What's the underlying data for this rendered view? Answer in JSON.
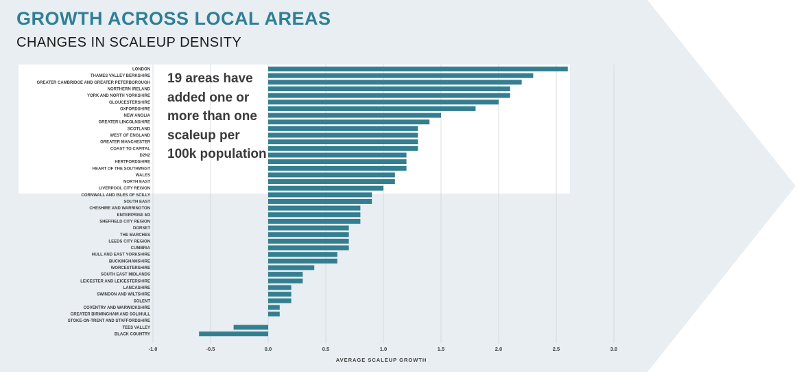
{
  "title": "GROWTH ACROSS LOCAL AREAS",
  "subtitle": "CHANGES IN SCALEUP DENSITY",
  "callout": "19 areas have added one or more than one scaleup per 100k population",
  "colors": {
    "title": "#2f7f96",
    "bar": "#347e91",
    "arrow_bg": "#e8eef1",
    "highlight_box": "#ffffff"
  },
  "chart_data": {
    "type": "bar",
    "orientation": "horizontal",
    "xlabel": "AVERAGE SCALEUP GROWTH",
    "xlim": [
      -1.0,
      3.0
    ],
    "xticks": [
      "-1.0",
      "-0.5",
      "0.0",
      "0.5",
      "1.0",
      "1.5",
      "2.0",
      "2.5",
      "3.0"
    ],
    "grid": "vertical",
    "highlight_count": 19,
    "categories": [
      "LONDON",
      "THAMES VALLEY BERKSHIRE",
      "GREATER CAMBRIDGE AND GREATER PETERBOROUGH",
      "NORTHERN IRELAND",
      "YORK AND NORTH YORKSHIRE",
      "GLOUCESTERSHIRE",
      "OXFORDSHIRE",
      "NEW ANGLIA",
      "GREATER LINCOLNSHIRE",
      "SCOTLAND",
      "WEST OF ENGLAND",
      "GREATER MANCHESTER",
      "COAST TO CAPITAL",
      "D2N2",
      "HERTFORDSHIRE",
      "HEART OF THE SOUTHWEST",
      "WALES",
      "NORTH EAST",
      "LIVERPOOL CITY REGION",
      "CORNWALL AND ISLES OF SCILLY",
      "SOUTH EAST",
      "CHESHIRE AND WARRINGTON",
      "ENTERPRISE M3",
      "SHEFFIELD CITY REGION",
      "DORSET",
      "THE MARCHES",
      "LEEDS CITY REGION",
      "CUMBRIA",
      "HULL AND EAST YORKSHIRE",
      "BUCKINGHAMSHIRE",
      "WORCESTERSHIRE",
      "SOUTH EAST MIDLANDS",
      "LEICESTER AND LEICESTERSHIRE",
      "LANCASHIRE",
      "SWINDON AND WILTSHIRE",
      "SOLENT",
      "COVENTRY AND WARWICKSHIRE",
      "GREATER BIRMINGHAM AND SOLIHULL",
      "STOKE-ON-TRENT AND STAFFORDSHIRE",
      "TEES VALLEY",
      "BLACK COUNTRY"
    ],
    "values": [
      2.6,
      2.3,
      2.2,
      2.1,
      2.1,
      2.0,
      1.8,
      1.5,
      1.4,
      1.3,
      1.3,
      1.3,
      1.3,
      1.2,
      1.2,
      1.2,
      1.1,
      1.1,
      1.0,
      0.9,
      0.9,
      0.8,
      0.8,
      0.8,
      0.7,
      0.7,
      0.7,
      0.7,
      0.6,
      0.6,
      0.4,
      0.3,
      0.3,
      0.2,
      0.2,
      0.2,
      0.1,
      0.1,
      0.0,
      -0.3,
      -0.6
    ]
  }
}
